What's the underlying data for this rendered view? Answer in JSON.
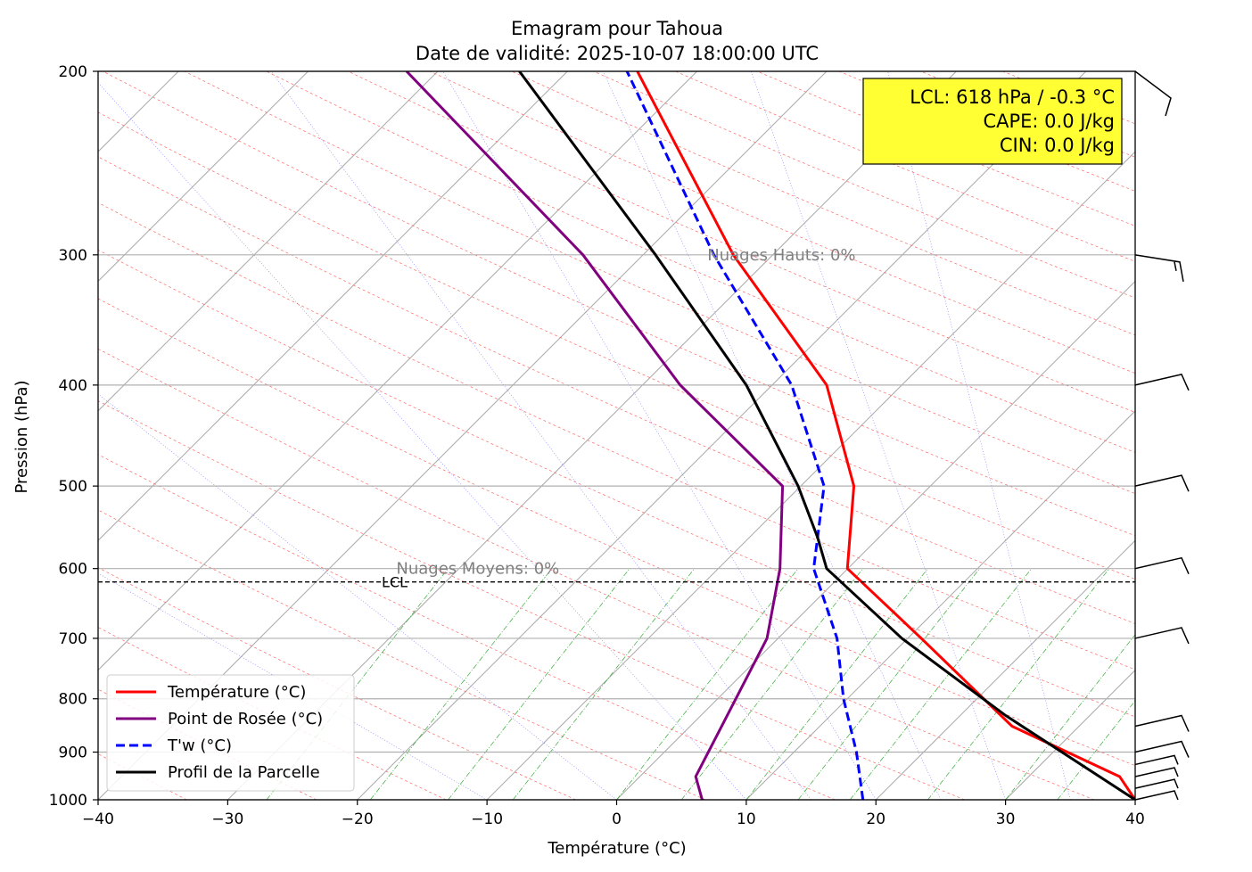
{
  "chart_data": {
    "type": "line",
    "title": "Emagram pour Tahoua",
    "subtitle": "Date de validité: 2025-10-07 18:00:00 UTC",
    "xlabel": "Température (°C)",
    "ylabel": "Pression (hPa)",
    "xlim": [
      -40,
      40
    ],
    "ylim": [
      1000,
      200
    ],
    "x_ticks": [
      -40,
      -30,
      -20,
      -10,
      0,
      10,
      20,
      30,
      40
    ],
    "x_tick_labels": [
      "−40",
      "−30",
      "−20",
      "−10",
      "0",
      "10",
      "20",
      "30",
      "40"
    ],
    "y_ticks": [
      1000,
      900,
      800,
      700,
      600,
      500,
      400,
      300,
      200
    ],
    "y_tick_labels": [
      "1000",
      "900",
      "800",
      "700",
      "600",
      "500",
      "400",
      "300",
      "200"
    ],
    "y_scale": "log",
    "grid": "horizontal at pressure ticks",
    "series": [
      {
        "name": "Température (°C)",
        "color": "#ff0000",
        "style": "solid",
        "points": [
          [
            40,
            1000
          ],
          [
            38.8,
            950
          ],
          [
            30.5,
            850
          ],
          [
            23.5,
            700
          ],
          [
            17.8,
            600
          ],
          [
            18.3,
            500
          ],
          [
            16.2,
            400
          ],
          [
            9.0,
            300
          ],
          [
            1.6,
            200
          ]
        ]
      },
      {
        "name": "Point de Rosée (°C)",
        "color": "#800080",
        "style": "solid",
        "points": [
          [
            6.6,
            1000
          ],
          [
            6.1,
            950
          ],
          [
            11.6,
            700
          ],
          [
            12.6,
            600
          ],
          [
            12.8,
            500
          ],
          [
            4.9,
            400
          ],
          [
            -2.6,
            300
          ],
          [
            -16.2,
            200
          ]
        ]
      },
      {
        "name": "T'w (°C)",
        "color": "#0000ff",
        "style": "dashed",
        "points": [
          [
            19.0,
            1000
          ],
          [
            18.5,
            900
          ],
          [
            17.5,
            800
          ],
          [
            17.0,
            700
          ],
          [
            15.2,
            600
          ],
          [
            16.0,
            500
          ],
          [
            13.5,
            400
          ],
          [
            7.5,
            300
          ],
          [
            0.8,
            200
          ]
        ]
      },
      {
        "name": "Profil de la Parcelle",
        "color": "#000000",
        "style": "solid",
        "points": [
          [
            40,
            1000
          ],
          [
            30,
            830
          ],
          [
            22,
            700
          ],
          [
            16.2,
            600
          ],
          [
            15.5,
            560
          ],
          [
            14,
            500
          ],
          [
            10,
            400
          ],
          [
            3,
            300
          ],
          [
            -7.5,
            200
          ]
        ]
      }
    ],
    "background_lines": [
      {
        "name": "isothermes",
        "color": "#aaaaaa",
        "style": "solid"
      },
      {
        "name": "adiabatiques sèches",
        "color": "#ff6666",
        "style": "dashed"
      },
      {
        "name": "adiabatiques saturées",
        "color": "#7777ff",
        "style": "dotted"
      },
      {
        "name": "rapport de mélange",
        "color": "#33aa33",
        "style": "dashdot"
      }
    ],
    "lcl": {
      "pressure": 618,
      "label": "LCL"
    },
    "annotations": [
      {
        "text": "Nuages Hauts: 0%",
        "x": 7,
        "p": 300
      },
      {
        "text": "Nuages Moyens: 0%",
        "x": -17,
        "p": 600
      }
    ],
    "info_box": {
      "lines": [
        "LCL: 618 hPa / -0.3 °C",
        "CAPE: 0.0 J/kg",
        "CIN: 0.0 J/kg"
      ],
      "background": "#ffff33",
      "placement": "top-right"
    },
    "legend": {
      "placement": "bottom-left",
      "entries": [
        "Température (°C)",
        "Point de Rosée (°C)",
        "T'w (°C)",
        "Profil de la Parcelle"
      ]
    },
    "wind_barbs_pressures": [
      200,
      300,
      400,
      500,
      600,
      700,
      850,
      900,
      925,
      950,
      975,
      1000
    ]
  }
}
